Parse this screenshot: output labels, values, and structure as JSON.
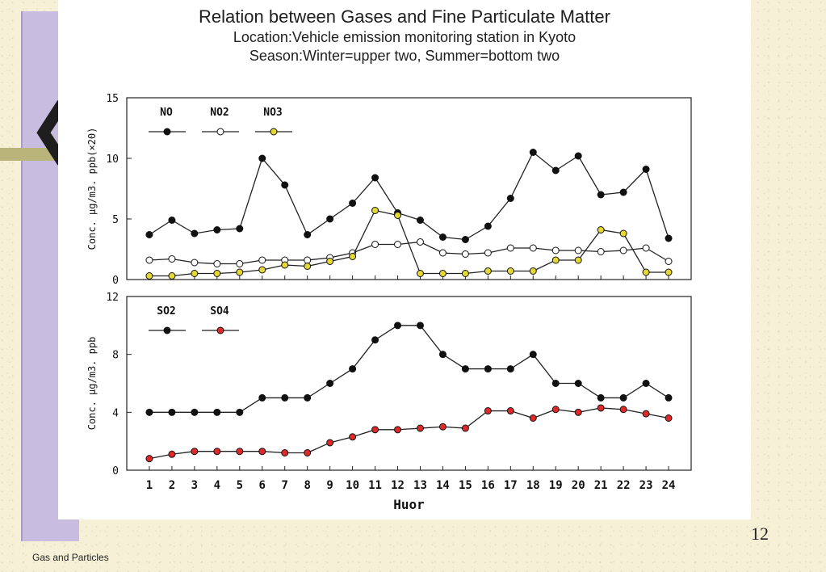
{
  "slide": {
    "title": "Relation between Gases and Fine Particulate Matter",
    "location": "Location:Vehicle emission monitoring station in Kyoto",
    "season": "Season:Winter=upper two, Summer=bottom two",
    "page_number": "12",
    "footer": "Gas and Particles"
  },
  "colors": {
    "black": "#111111",
    "white": "#ffffff",
    "yellow": "#e6d832",
    "red": "#e02828"
  },
  "chart_data": [
    {
      "type": "line",
      "ylabel": "Conc. μg/m3. ppb(×20)",
      "ylim": [
        0,
        15
      ],
      "yticks": [
        0,
        5,
        10,
        15
      ],
      "x": [
        1,
        2,
        3,
        4,
        5,
        6,
        7,
        8,
        9,
        10,
        11,
        12,
        13,
        14,
        15,
        16,
        17,
        18,
        19,
        20,
        21,
        22,
        23,
        24
      ],
      "legend_position": "top-left",
      "series": [
        {
          "name": "NO",
          "marker_fill": "black",
          "values": [
            3.7,
            4.9,
            3.8,
            4.1,
            4.2,
            10,
            7.8,
            3.7,
            5,
            6.3,
            8.4,
            5.5,
            4.9,
            3.5,
            3.3,
            4.4,
            6.7,
            10.5,
            9,
            10.2,
            7,
            7.2,
            9.1,
            3.4
          ]
        },
        {
          "name": "NO2",
          "marker_fill": "white",
          "values": [
            1.6,
            1.7,
            1.4,
            1.3,
            1.3,
            1.6,
            1.6,
            1.6,
            1.8,
            2.2,
            2.9,
            2.9,
            3.1,
            2.2,
            2.1,
            2.2,
            2.6,
            2.6,
            2.4,
            2.4,
            2.3,
            2.4,
            2.6,
            1.5
          ]
        },
        {
          "name": "NO3",
          "marker_fill": "yellow",
          "values": [
            0.3,
            0.3,
            0.5,
            0.5,
            0.6,
            0.8,
            1.2,
            1.1,
            1.5,
            1.9,
            5.7,
            5.3,
            0.5,
            0.5,
            0.5,
            0.7,
            0.7,
            0.7,
            1.6,
            1.6,
            4.1,
            3.8,
            0.6,
            0.6
          ]
        }
      ]
    },
    {
      "type": "line",
      "xlabel": "Huor",
      "ylabel": "Conc. μg/m3. ppb",
      "ylim": [
        0,
        12
      ],
      "yticks": [
        0,
        4,
        8,
        12
      ],
      "x": [
        1,
        2,
        3,
        4,
        5,
        6,
        7,
        8,
        9,
        10,
        11,
        12,
        13,
        14,
        15,
        16,
        17,
        18,
        19,
        20,
        21,
        22,
        23,
        24
      ],
      "legend_position": "top-left",
      "series": [
        {
          "name": "SO2",
          "marker_fill": "black",
          "values": [
            4,
            4,
            4,
            4,
            4,
            5,
            5,
            5,
            6,
            7,
            9,
            10,
            10,
            8,
            7,
            7,
            7,
            8,
            6,
            6,
            5,
            5,
            6,
            5
          ]
        },
        {
          "name": "SO4",
          "marker_fill": "red",
          "values": [
            0.8,
            1.1,
            1.3,
            1.3,
            1.3,
            1.3,
            1.2,
            1.2,
            1.9,
            2.3,
            2.8,
            2.8,
            2.9,
            3,
            2.9,
            4.1,
            4.1,
            3.6,
            4.2,
            4,
            4.3,
            4.2,
            3.9,
            3.6
          ]
        }
      ]
    }
  ]
}
